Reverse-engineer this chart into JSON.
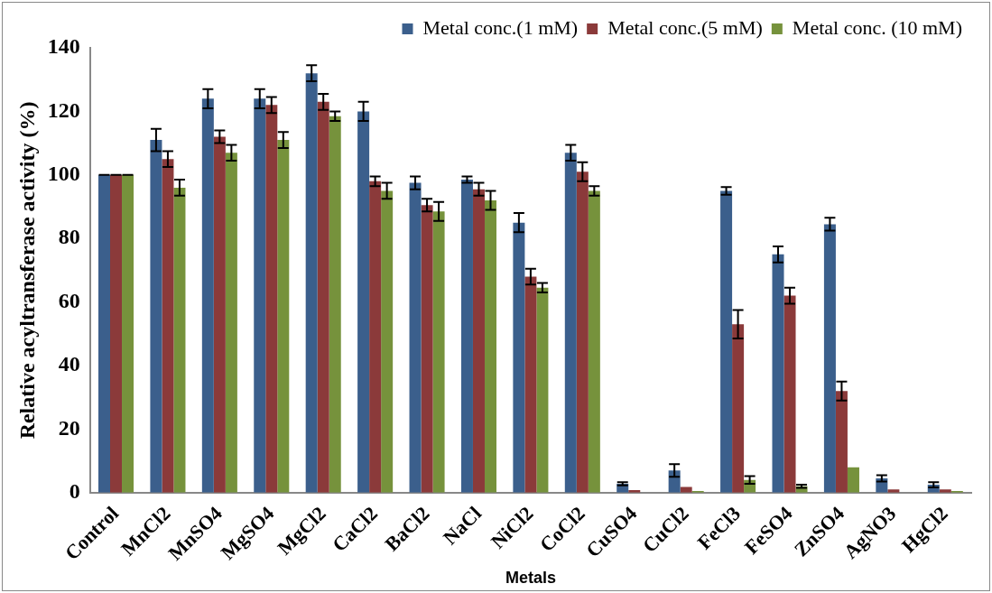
{
  "chart_data": {
    "type": "bar",
    "xlabel": "Metals",
    "ylabel": "Relative acyltransferase activity (%)",
    "categories": [
      "Control",
      "MnCl2",
      "MnSO4",
      "MgSO4",
      "MgCl2",
      "CaCl2",
      "BaCl2",
      "NaCl",
      "NiCl2",
      "CoCl2",
      "CuSO4",
      "CuCl2",
      "FeCl3",
      "FeSO4",
      "ZnSO4",
      "AgNO3",
      "HgCl2"
    ],
    "series": [
      {
        "name": "Metal conc.(1 mM)",
        "color": "#3b5f8c",
        "values": [
          100,
          111,
          124,
          124,
          132,
          120,
          97.5,
          98.5,
          85,
          107,
          2.8,
          7,
          95,
          75,
          84.5,
          4.5,
          2.5
        ],
        "errors": [
          0,
          3.5,
          3,
          3,
          2.5,
          3,
          2,
          1,
          3,
          2.5,
          0.5,
          2,
          1.2,
          2.5,
          2,
          1,
          0.8
        ]
      },
      {
        "name": "Metal conc.(5 mM)",
        "color": "#8b3a3a",
        "values": [
          100,
          105,
          112,
          122,
          123,
          98,
          90.5,
          95.5,
          68,
          101,
          0.8,
          1.8,
          53,
          62,
          32,
          1,
          1
        ],
        "errors": [
          0,
          2.5,
          2,
          2.5,
          2.5,
          1.5,
          2,
          2,
          2.5,
          3,
          null,
          null,
          4.5,
          2.5,
          3,
          null,
          null
        ]
      },
      {
        "name": "Metal conc. (10 mM)",
        "color": "#76923c",
        "values": [
          100,
          96,
          107,
          111,
          118.5,
          95,
          88.5,
          92,
          64.5,
          95,
          null,
          0.5,
          4,
          2,
          8,
          null,
          0.5
        ],
        "errors": [
          0,
          2.5,
          2.5,
          2.5,
          1.5,
          2.5,
          3,
          3,
          1.5,
          1.5,
          null,
          null,
          1.2,
          0.5,
          null,
          null,
          null
        ]
      }
    ],
    "ylim": [
      0,
      140
    ],
    "yticks": [
      0,
      20,
      40,
      60,
      80,
      100,
      120,
      140
    ],
    "grid": false,
    "legend": "top right"
  }
}
